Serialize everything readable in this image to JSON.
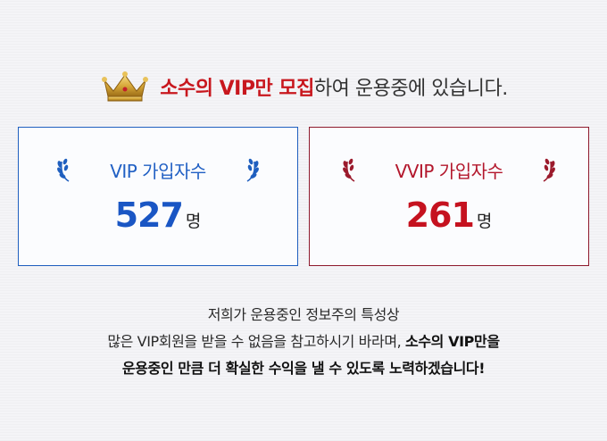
{
  "headline": {
    "highlight": "소수의 VIP만 모집",
    "rest": "하여 운용중에 있습니다."
  },
  "vip": {
    "title": "VIP 가입자수",
    "count": "527",
    "unit": "명"
  },
  "vvip": {
    "title": "VVIP 가입자수",
    "count": "261",
    "unit": "명"
  },
  "description": {
    "line1": "저희가 운용중인 정보주의 특성상",
    "line2_normal": "많은 VIP회원을 받을 수 없음을 참고하시기 바라며, ",
    "line2_bold": "소수의 VIP만을",
    "line3_bold": "운용중인 만큼 더 확실한 수익을 낼 수 있도록 노력하겠습니다!"
  },
  "colors": {
    "brand_red": "#c8171e",
    "vip_blue": "#1a56c4",
    "vvip_red": "#c5121f"
  }
}
